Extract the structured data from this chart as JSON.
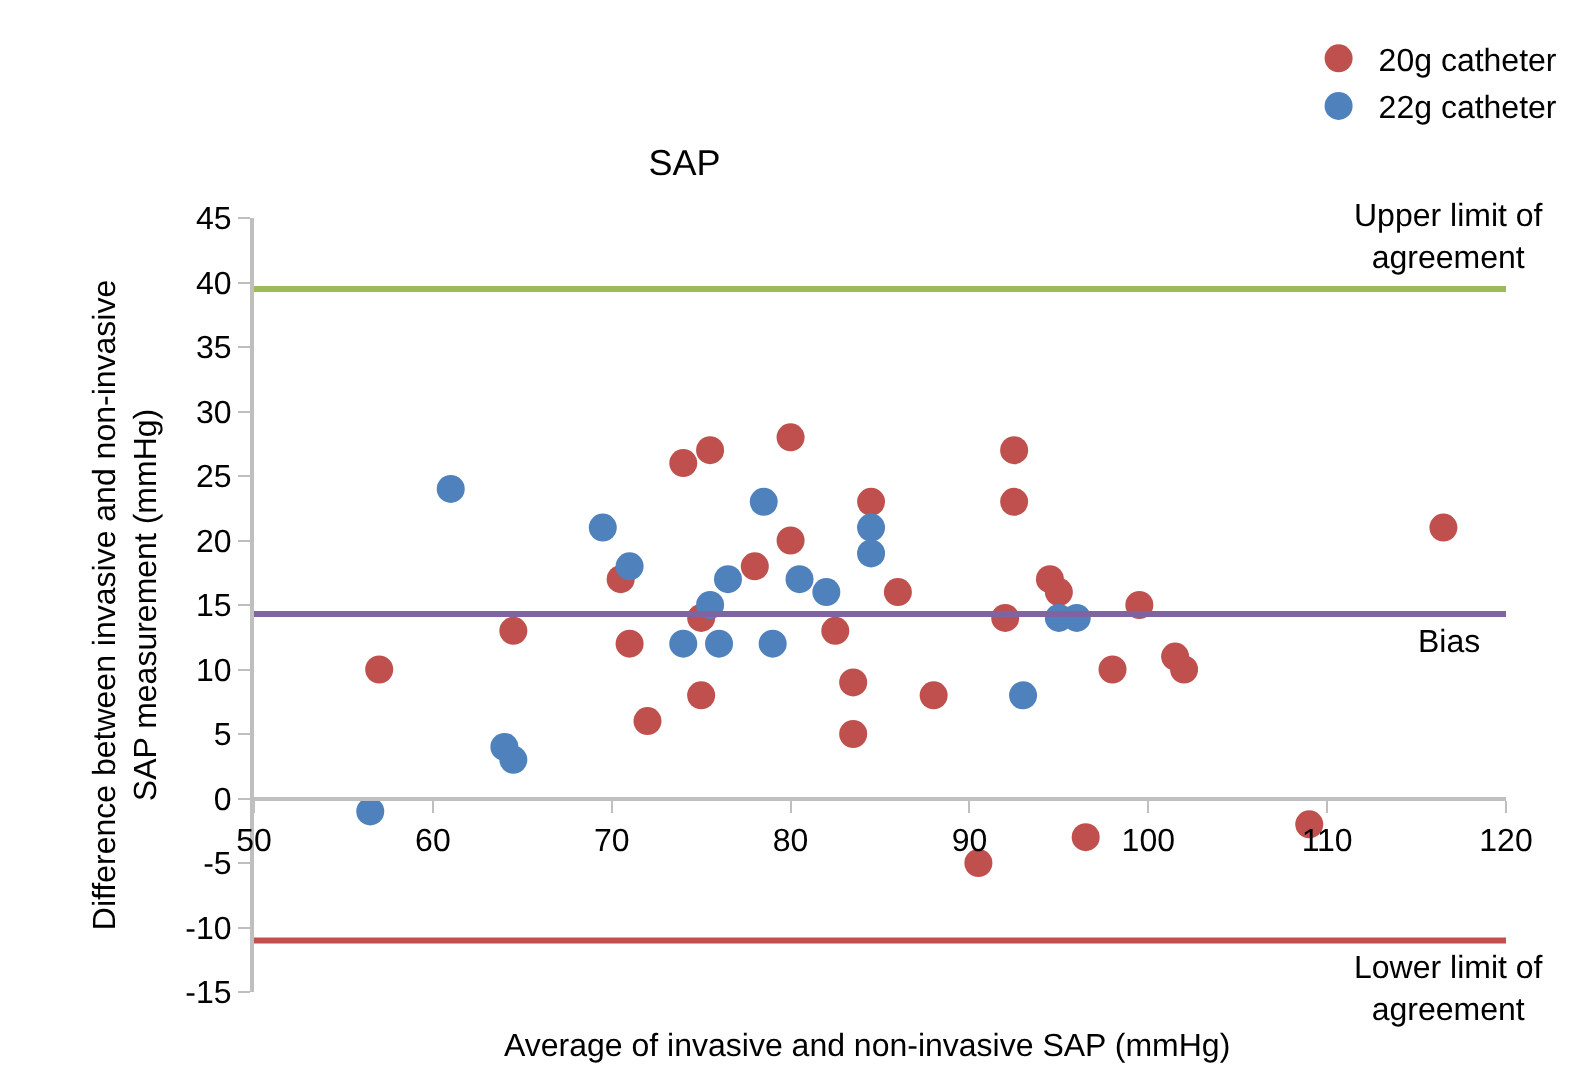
{
  "chart_data": {
    "type": "scatter",
    "title": "SAP",
    "xlabel": "Average of invasive and non-invasive SAP (mmHg)",
    "ylabel": "Difference between invasive and non-invasive SAP measurement (mmHg)",
    "xlim": [
      50,
      120
    ],
    "xticks": [
      50,
      60,
      70,
      80,
      90,
      100,
      110,
      120
    ],
    "ylim": [
      -15,
      45
    ],
    "yticks": [
      -15,
      -10,
      -5,
      0,
      5,
      10,
      15,
      20,
      25,
      30,
      35,
      40,
      45
    ],
    "legend": "top right",
    "marker": "circle",
    "series": [
      {
        "name": "20g catheter",
        "color": "#c0504d",
        "x": [
          57,
          64.5,
          70.5,
          71,
          72,
          74,
          75,
          75,
          75.5,
          78,
          80,
          80,
          82.5,
          83.5,
          83.5,
          84.5,
          86,
          88,
          90.5,
          92,
          92.5,
          92.5,
          94.5,
          95,
          96.5,
          98,
          99.5,
          101.5,
          102,
          109,
          116.5
        ],
        "values": [
          10,
          13,
          17,
          12,
          6,
          26,
          14,
          8,
          27,
          18,
          28,
          20,
          13,
          9,
          5,
          23,
          16,
          8,
          -5,
          14,
          27,
          23,
          17,
          16,
          -3,
          10,
          15,
          11,
          10,
          -2,
          21
        ]
      },
      {
        "name": "22g catheter",
        "color": "#4f81bd",
        "x": [
          56.5,
          61,
          64,
          64.5,
          69.5,
          71,
          74,
          75.5,
          76,
          76.5,
          78.5,
          79,
          80.5,
          82,
          84.5,
          84.5,
          93,
          95,
          96
        ],
        "values": [
          -1,
          24,
          4,
          3,
          21,
          18,
          12,
          15,
          12,
          17,
          23,
          12,
          17,
          16,
          21,
          19,
          8,
          14,
          14
        ]
      }
    ],
    "ref_lines": [
      {
        "axis": "y",
        "value": 39.5,
        "label": "Upper limit of agreement",
        "color": "#9bbb59"
      },
      {
        "axis": "y",
        "value": 14.3,
        "label": "Bias",
        "color": "#8064a2"
      },
      {
        "axis": "y",
        "value": -11,
        "label": "Lower limit of agreement",
        "color": "#c0504d"
      }
    ]
  }
}
